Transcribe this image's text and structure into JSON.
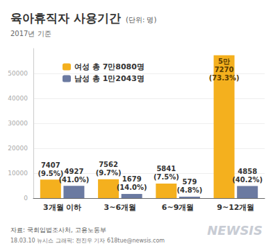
{
  "chart_data": {
    "type": "bar",
    "title": "육아휴직자 사용기간",
    "unit_note": "(단위: 명)",
    "subtitle": "2017년 기준",
    "source": "자료: 국회입법조사처, 고용노동부",
    "credit": "18.03.10 뉴시스 그래픽: 전진우 기자 618tue@newsis.com",
    "watermark": "NEWSIS",
    "categories": [
      "3개월 이하",
      "3~6개월",
      "6~9개월",
      "9~12개월"
    ],
    "series": [
      {
        "name": "여성 총 7만8080명",
        "color": "#f4b01e",
        "values": [
          7407,
          7562,
          5841,
          57270
        ],
        "value_labels": [
          "7407 (9.5%)",
          "7562 (9.7%)",
          "5841 (7.5%)",
          "5만 7270 (73.3%)"
        ]
      },
      {
        "name": "남성 총 1만2043명",
        "color": "#6b7aa1",
        "values": [
          4927,
          1679,
          579,
          4858
        ],
        "value_labels": [
          "4927 (41.0%)",
          "1679 (14.0%)",
          "579 (4.8%)",
          "4858 (40.2%)"
        ]
      }
    ],
    "ylim": [
      0,
      60000
    ],
    "yticks": [
      0,
      10000,
      20000,
      30000,
      40000,
      50000
    ],
    "grid": true,
    "legend": "top-left",
    "data_labels": true
  }
}
